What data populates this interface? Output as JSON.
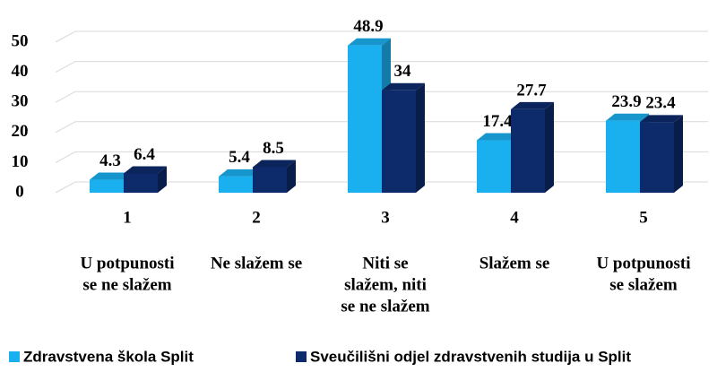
{
  "chart_data": {
    "type": "bar3d",
    "categories": [
      "1",
      "2",
      "3",
      "4",
      "5"
    ],
    "category_descriptions": [
      [
        "U potpunosti",
        "se ne slažem"
      ],
      [
        "Ne slažem se"
      ],
      [
        "Niti se",
        "slažem, niti",
        "se ne slažem"
      ],
      [
        "Slažem se"
      ],
      [
        "U potpunosti",
        "se slažem"
      ]
    ],
    "series": [
      {
        "name": "Zdravstvena škola Split",
        "color": "#1ab0f0",
        "values": [
          4.3,
          5.4,
          48.9,
          17.4,
          23.9
        ]
      },
      {
        "name": "Sveučilišni odjel zdravstvenih studija u Split",
        "color": "#0d2a6b",
        "values": [
          6.4,
          8.5,
          34,
          27.7,
          23.4
        ]
      }
    ],
    "ylim": [
      0,
      50
    ],
    "yticks": [
      0,
      10,
      20,
      30,
      40,
      50
    ],
    "grid": true,
    "legend": "bottom"
  }
}
